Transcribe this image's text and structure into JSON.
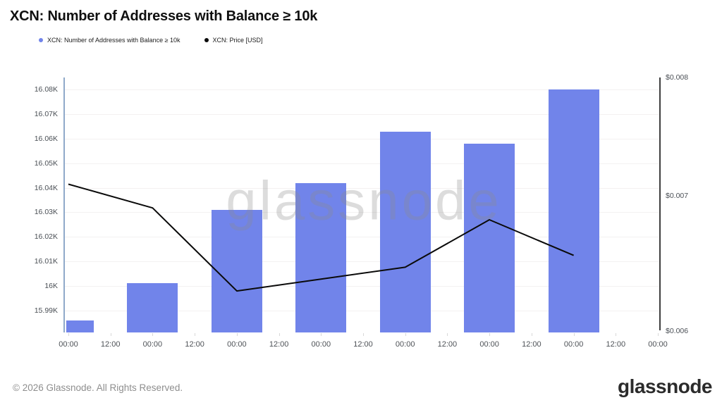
{
  "header": {
    "title": "XCN: Number of Addresses with Balance ≥ 10k"
  },
  "legend": [
    {
      "label": "XCN: Number of Addresses with Balance ≥ 10k",
      "color": "#7184ea"
    },
    {
      "label": "XCN: Price [USD]",
      "color": "#0a0a0a"
    }
  ],
  "watermark": "glassnode",
  "footer": {
    "copyright": "© 2026 Glassnode. All Rights Reserved.",
    "logo_text": "glassnode"
  },
  "chart_data": {
    "type": "bar",
    "title": "XCN: Number of Addresses with Balance ≥ 10k",
    "subtype": "bar+line dual-axis time series",
    "grid": "horizontal",
    "legend_position": "top-left",
    "x_tick_labels": [
      "00:00",
      "12:00",
      "00:00",
      "12:00",
      "00:00",
      "12:00",
      "00:00",
      "12:00",
      "00:00",
      "12:00",
      "00:00",
      "12:00",
      "00:00",
      "12:00",
      "00:00"
    ],
    "series": [
      {
        "name": "XCN: Number of Addresses with Balance ≥ 10k",
        "type": "bar",
        "yaxis": "left",
        "color": "#7184ea",
        "x_tick_indices": [
          0,
          2,
          4,
          6,
          8,
          10,
          12
        ],
        "values": [
          15986,
          16001,
          16031,
          16042,
          16063,
          16058,
          16080
        ]
      },
      {
        "name": "XCN: Price [USD]",
        "type": "line",
        "yaxis": "right",
        "color": "#0a0a0a",
        "x_tick_indices": [
          0,
          2,
          4,
          6,
          8,
          10,
          12
        ],
        "values": [
          0.0071,
          0.0069,
          0.0062,
          0.0063,
          0.0064,
          0.0068,
          0.0065
        ]
      }
    ],
    "left_axis": {
      "tick_labels": [
        "16.08K",
        "16.07K",
        "16.06K",
        "16.05K",
        "16.04K",
        "16.03K",
        "16.02K",
        "16.01K",
        "16K",
        "15.99K"
      ],
      "tick_values": [
        16080,
        16070,
        16060,
        16050,
        16040,
        16030,
        16020,
        16010,
        16000,
        15990
      ],
      "min": 15981,
      "max": 16085
    },
    "right_axis": {
      "tick_labels": [
        "$0.008",
        "$0.007",
        "$0.006"
      ],
      "tick_values": [
        0.008,
        0.007,
        0.006
      ],
      "min": 0.00585,
      "max": 0.008
    }
  }
}
